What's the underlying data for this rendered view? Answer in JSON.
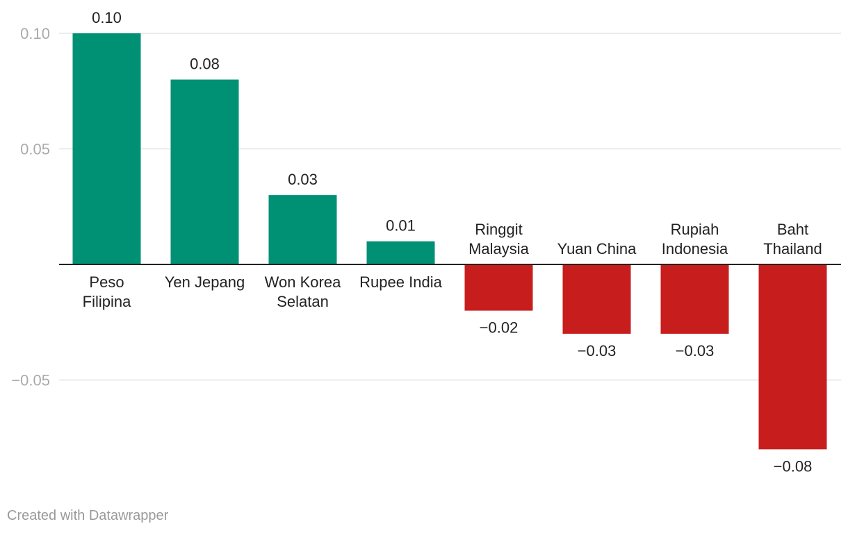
{
  "chart_data": {
    "type": "bar",
    "categories": [
      [
        "Peso",
        "Filipina"
      ],
      [
        "Yen Jepang"
      ],
      [
        "Won Korea",
        "Selatan"
      ],
      [
        "Rupee India"
      ],
      [
        "Ringgit",
        "Malaysia"
      ],
      [
        "Yuan China"
      ],
      [
        "Rupiah",
        "Indonesia"
      ],
      [
        "Baht",
        "Thailand"
      ]
    ],
    "values": [
      0.1,
      0.08,
      0.03,
      0.01,
      -0.02,
      -0.03,
      -0.03,
      -0.08
    ],
    "value_labels": [
      "0.10",
      "0.08",
      "0.03",
      "0.01",
      "−0.02",
      "−0.03",
      "−0.03",
      "−0.08"
    ],
    "yticks": [
      0.1,
      0.05,
      -0.05
    ],
    "ytick_labels": [
      "0.10",
      "0.05",
      "−0.05"
    ],
    "ylim": [
      -0.08,
      0.1
    ],
    "grid": true,
    "colors": {
      "positive": "#009174",
      "negative": "#c71e1d",
      "grid": "#e5e5e5",
      "baseline": "#222222"
    }
  },
  "footer": {
    "credit": "Created with Datawrapper"
  }
}
